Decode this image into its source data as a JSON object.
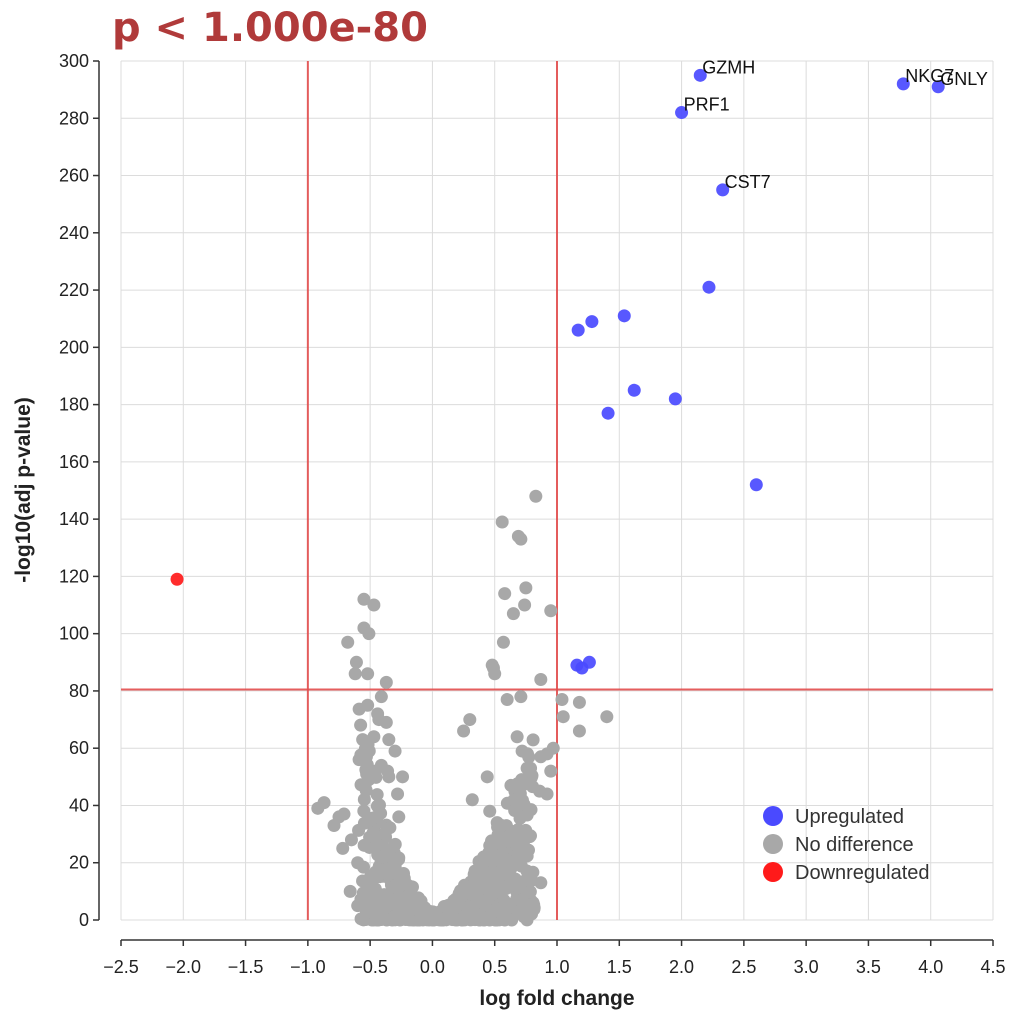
{
  "title": "p < 1.000e-80",
  "chart_data": {
    "type": "scatter",
    "xlabel": "log fold change",
    "ylabel": "-log10(adj p-value)",
    "xlim": [
      -2.5,
      4.5
    ],
    "ylim": [
      0,
      300
    ],
    "x_ticks": [
      -2.5,
      -2.0,
      -1.5,
      -1.0,
      -0.5,
      0.0,
      0.5,
      1.0,
      1.5,
      2.0,
      2.5,
      3.0,
      3.5,
      4.0,
      4.5
    ],
    "y_ticks": [
      0,
      20,
      40,
      60,
      80,
      100,
      120,
      140,
      160,
      180,
      200,
      220,
      240,
      260,
      280,
      300
    ],
    "grid": true,
    "thresholds": {
      "x": [
        -1.0,
        1.0
      ],
      "y": 80.5
    },
    "legend": {
      "position": "bottom-right",
      "entries": [
        {
          "name": "Upregulated",
          "color": "#4a4aff"
        },
        {
          "name": "No difference",
          "color": "#a8a8a8"
        },
        {
          "name": "Downregulated",
          "color": "#ff1a1a"
        }
      ]
    },
    "series": [
      {
        "name": "Upregulated",
        "color": "#4a4aff",
        "points": [
          {
            "x": 2.15,
            "y": 295,
            "label": "GZMH"
          },
          {
            "x": 3.78,
            "y": 292,
            "label": "NKG7"
          },
          {
            "x": 4.06,
            "y": 291,
            "label": "GNLY"
          },
          {
            "x": 2.0,
            "y": 282,
            "label": "PRF1"
          },
          {
            "x": 2.33,
            "y": 255,
            "label": "CST7"
          },
          {
            "x": 2.22,
            "y": 221
          },
          {
            "x": 1.54,
            "y": 211
          },
          {
            "x": 1.28,
            "y": 209
          },
          {
            "x": 1.17,
            "y": 206
          },
          {
            "x": 1.62,
            "y": 185
          },
          {
            "x": 1.95,
            "y": 182
          },
          {
            "x": 1.41,
            "y": 177
          },
          {
            "x": 2.6,
            "y": 152
          },
          {
            "x": 1.26,
            "y": 90
          },
          {
            "x": 1.16,
            "y": 89
          },
          {
            "x": 1.2,
            "y": 88
          }
        ]
      },
      {
        "name": "No difference",
        "color": "#a8a8a8",
        "points": [
          {
            "x": 0.83,
            "y": 148
          },
          {
            "x": 0.56,
            "y": 139
          },
          {
            "x": 0.69,
            "y": 134
          },
          {
            "x": 0.71,
            "y": 133
          },
          {
            "x": 0.75,
            "y": 116
          },
          {
            "x": 0.58,
            "y": 114
          },
          {
            "x": 0.74,
            "y": 110
          },
          {
            "x": 0.65,
            "y": 107
          },
          {
            "x": 0.95,
            "y": 108
          },
          {
            "x": 0.57,
            "y": 97
          },
          {
            "x": 0.48,
            "y": 89
          },
          {
            "x": 0.49,
            "y": 88
          },
          {
            "x": 0.5,
            "y": 86
          },
          {
            "x": 0.87,
            "y": 84
          },
          {
            "x": 0.71,
            "y": 78
          },
          {
            "x": 0.6,
            "y": 77
          },
          {
            "x": 1.04,
            "y": 77
          },
          {
            "x": 1.18,
            "y": 76
          },
          {
            "x": 1.05,
            "y": 71
          },
          {
            "x": 1.4,
            "y": 71
          },
          {
            "x": 1.18,
            "y": 66
          },
          {
            "x": 0.3,
            "y": 70
          },
          {
            "x": 0.25,
            "y": 66
          },
          {
            "x": 0.68,
            "y": 64
          },
          {
            "x": 0.87,
            "y": 57
          },
          {
            "x": 0.72,
            "y": 59
          },
          {
            "x": 0.92,
            "y": 58
          },
          {
            "x": 0.97,
            "y": 60
          },
          {
            "x": 0.95,
            "y": 52
          },
          {
            "x": 0.76,
            "y": 53
          },
          {
            "x": 0.44,
            "y": 50
          },
          {
            "x": 0.63,
            "y": 47
          },
          {
            "x": 0.86,
            "y": 45
          },
          {
            "x": 0.92,
            "y": 44
          },
          {
            "x": 0.68,
            "y": 41
          },
          {
            "x": 0.46,
            "y": 38
          },
          {
            "x": 0.32,
            "y": 42
          },
          {
            "x": 0.52,
            "y": 34
          },
          {
            "x": 0.68,
            "y": 30
          },
          {
            "x": 0.73,
            "y": 27
          },
          {
            "x": 0.46,
            "y": 26
          },
          {
            "x": 0.87,
            "y": 13
          },
          {
            "x": 0.63,
            "y": 18
          },
          {
            "x": -0.55,
            "y": 112
          },
          {
            "x": -0.47,
            "y": 110
          },
          {
            "x": -0.55,
            "y": 102
          },
          {
            "x": -0.51,
            "y": 100
          },
          {
            "x": -0.68,
            "y": 97
          },
          {
            "x": -0.61,
            "y": 90
          },
          {
            "x": -0.52,
            "y": 86
          },
          {
            "x": -0.62,
            "y": 86
          },
          {
            "x": -0.37,
            "y": 83
          },
          {
            "x": -0.41,
            "y": 78
          },
          {
            "x": -0.52,
            "y": 75
          },
          {
            "x": -0.43,
            "y": 70
          },
          {
            "x": -0.44,
            "y": 72
          },
          {
            "x": -0.37,
            "y": 69
          },
          {
            "x": -0.35,
            "y": 63
          },
          {
            "x": -0.47,
            "y": 64
          },
          {
            "x": -0.56,
            "y": 63
          },
          {
            "x": -0.3,
            "y": 59
          },
          {
            "x": -0.53,
            "y": 57
          },
          {
            "x": -0.41,
            "y": 54
          },
          {
            "x": -0.36,
            "y": 52
          },
          {
            "x": -0.46,
            "y": 52
          },
          {
            "x": -0.35,
            "y": 50
          },
          {
            "x": -0.24,
            "y": 50
          },
          {
            "x": -0.54,
            "y": 47
          },
          {
            "x": -0.28,
            "y": 44
          },
          {
            "x": -0.87,
            "y": 41
          },
          {
            "x": -0.92,
            "y": 39
          },
          {
            "x": -0.71,
            "y": 37
          },
          {
            "x": -0.75,
            "y": 36
          },
          {
            "x": -0.79,
            "y": 33
          },
          {
            "x": -0.65,
            "y": 28
          },
          {
            "x": -0.72,
            "y": 25
          },
          {
            "x": -0.45,
            "y": 36
          },
          {
            "x": -0.38,
            "y": 30
          },
          {
            "x": -0.27,
            "y": 36
          },
          {
            "x": -0.6,
            "y": 20
          },
          {
            "x": -0.66,
            "y": 10
          },
          {
            "x": -0.48,
            "y": 14
          },
          {
            "x": -0.41,
            "y": 22
          },
          {
            "x": -0.53,
            "y": 3
          },
          {
            "x": -0.6,
            "y": 5
          }
        ]
      },
      {
        "name": "Downregulated",
        "color": "#ff1a1a",
        "points": [
          {
            "x": -2.05,
            "y": 119
          }
        ]
      }
    ]
  }
}
